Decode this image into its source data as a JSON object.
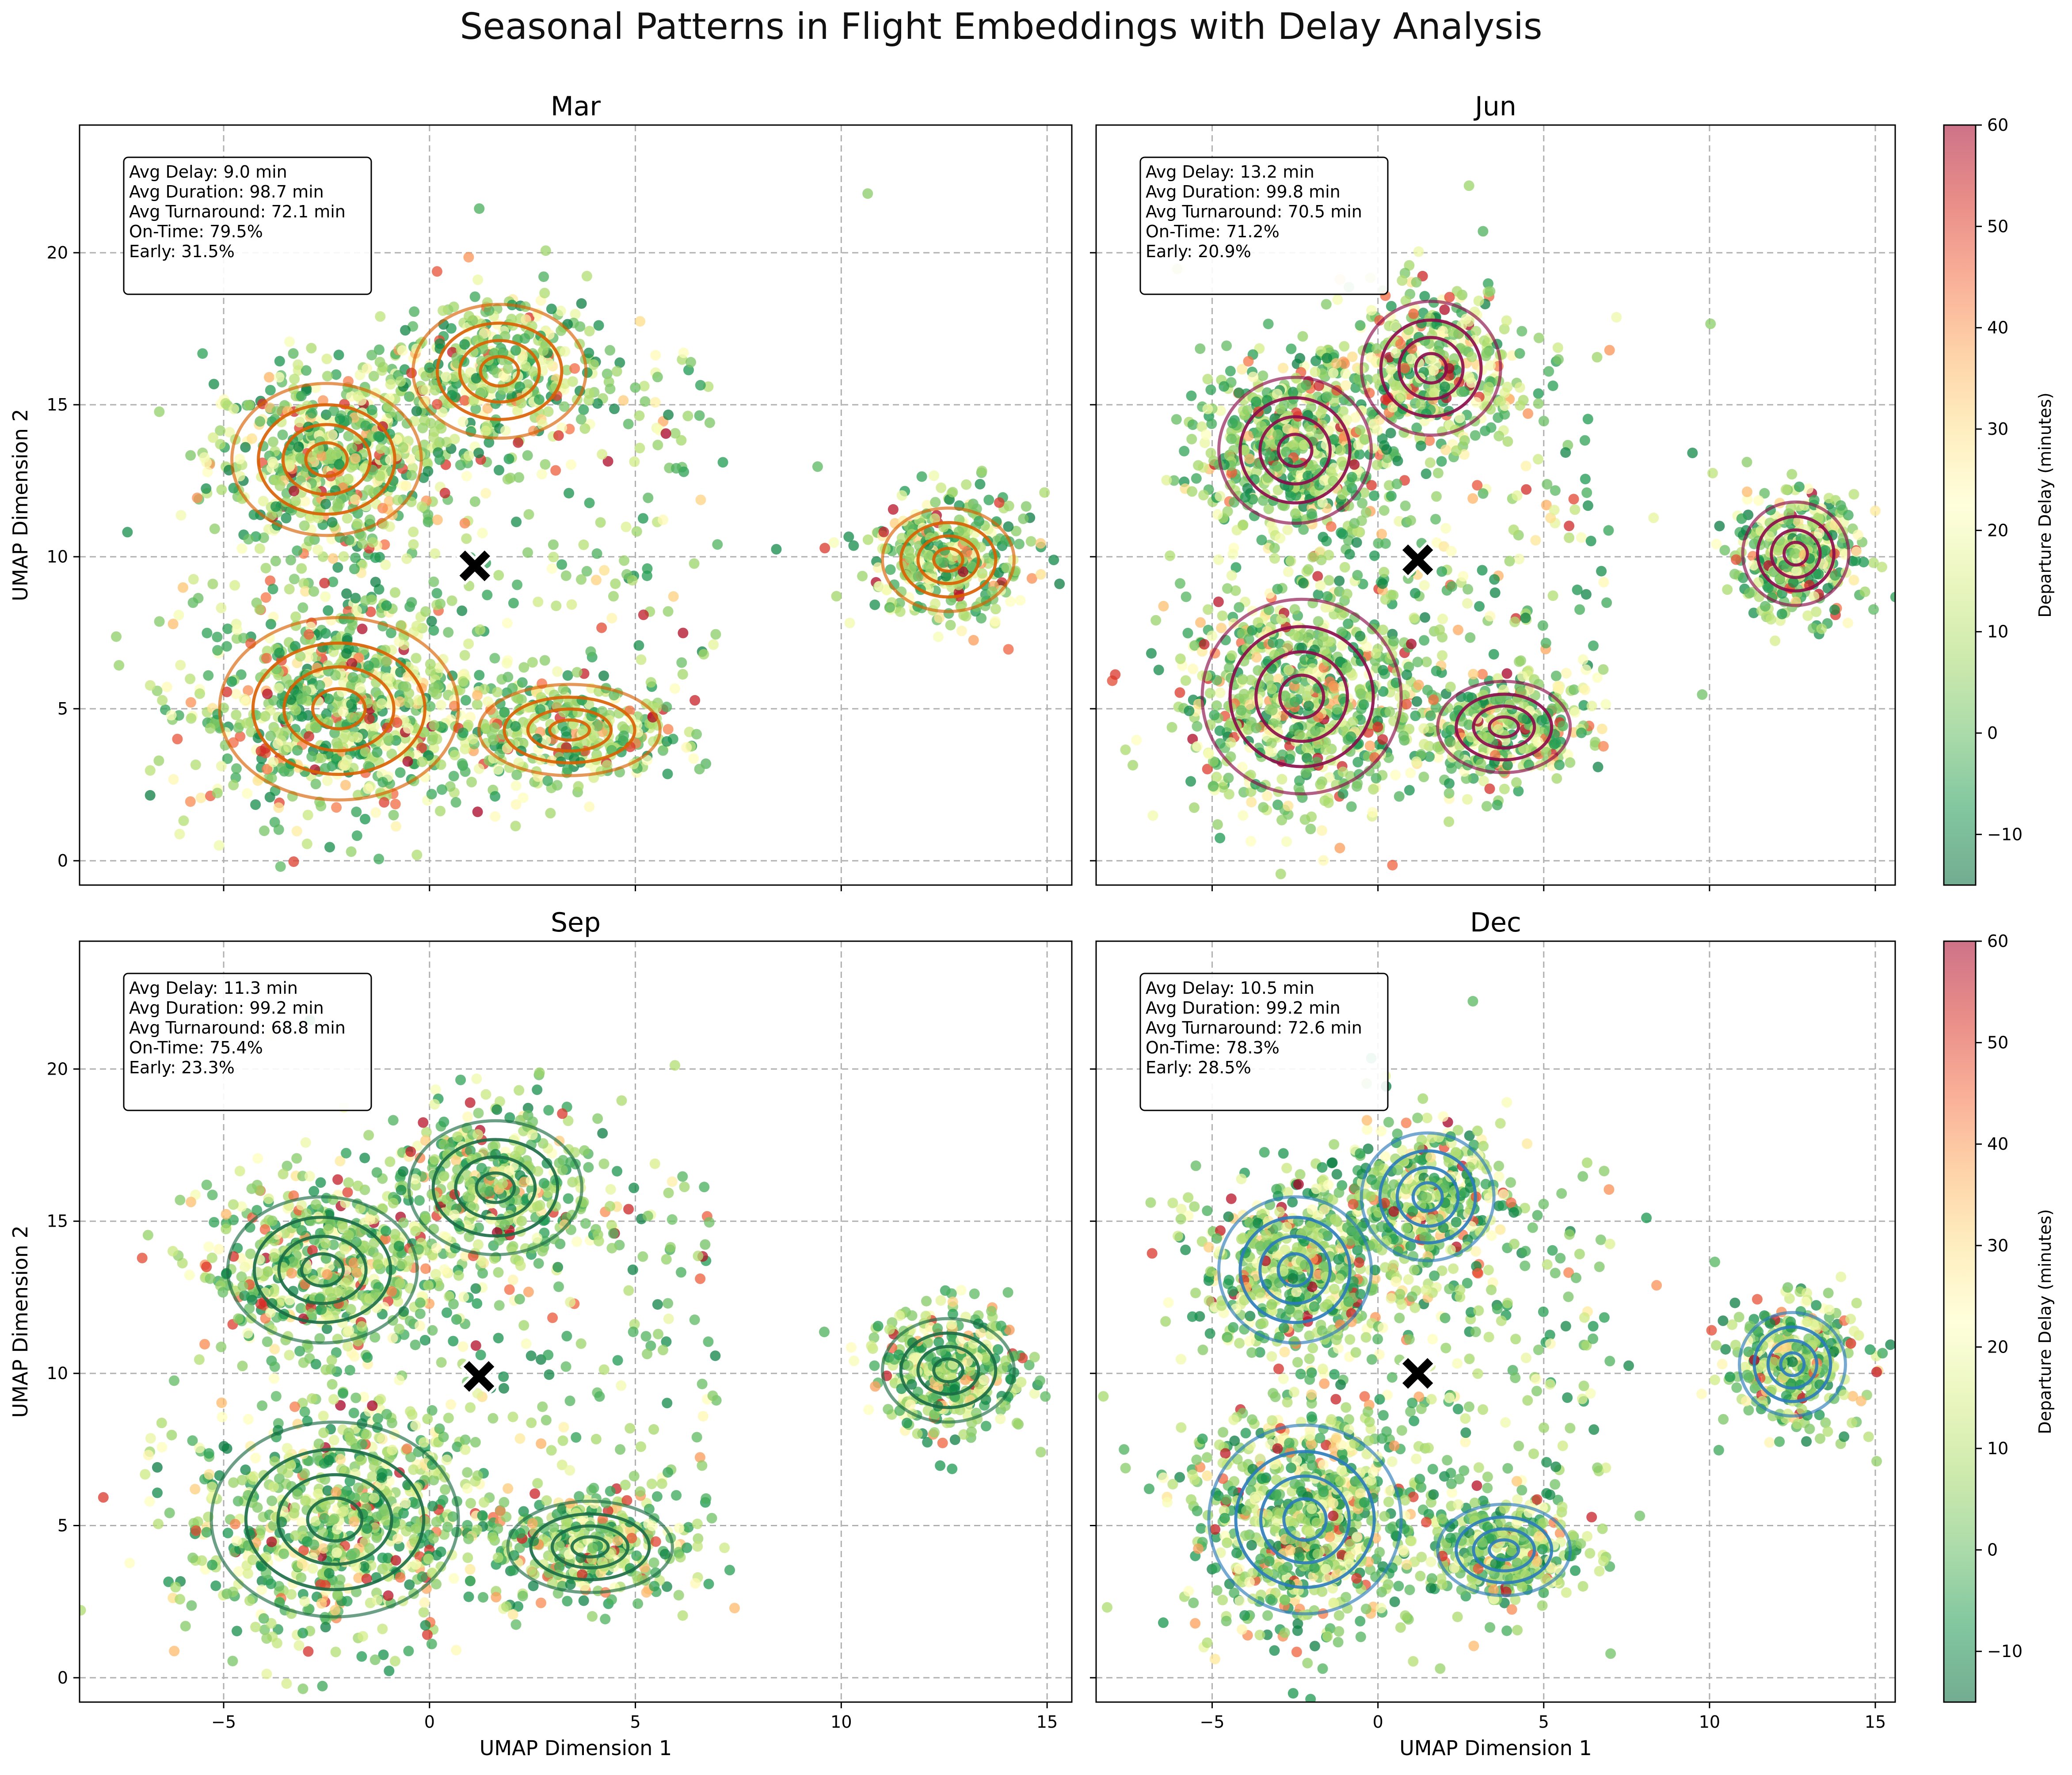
{
  "figure": {
    "title": "Seasonal Patterns in Flight Embeddings with Delay Analysis"
  },
  "colorbar": {
    "label": "Departure Delay (minutes)",
    "range": [
      -15,
      60
    ],
    "ticks": [
      -10,
      0,
      10,
      20,
      30,
      40,
      50,
      60
    ],
    "tick_labels": [
      "−10",
      "0",
      "10",
      "20",
      "30",
      "40",
      "50",
      "60"
    ],
    "colormap": "RdYlGn_r",
    "alpha": 0.55
  },
  "chart_data": [
    {
      "type": "scatter",
      "title": "Mar",
      "xlabel": "",
      "ylabel": "UMAP Dimension 2",
      "xlim": [
        -8.5,
        15.6
      ],
      "ylim": [
        -0.8,
        24.2
      ],
      "xticks": [
        -5,
        0,
        5,
        10,
        15
      ],
      "xtick_labels": [],
      "yticks": [
        0,
        5,
        10,
        15,
        20
      ],
      "ytick_labels": [
        "0",
        "5",
        "10",
        "15",
        "20"
      ],
      "grid": true,
      "contour_color": "#d95f02",
      "centroid": [
        1.1,
        9.7
      ],
      "stats": [
        "Avg Delay: 9.0 min",
        "Avg Duration: 98.7 min",
        "Avg Turnaround: 72.1 min",
        "On-Time: 79.5%",
        "Early: 31.5%"
      ],
      "clusters": [
        {
          "center": [
            -2.5,
            13.2
          ],
          "radii": [
            2.3,
            2.5
          ]
        },
        {
          "center": [
            1.7,
            16.1
          ],
          "radii": [
            2.1,
            2.2
          ]
        },
        {
          "center": [
            -2.2,
            5.0
          ],
          "radii": [
            2.9,
            3.0
          ]
        },
        {
          "center": [
            3.4,
            4.3
          ],
          "radii": [
            2.2,
            1.5
          ]
        },
        {
          "center": [
            12.6,
            9.9
          ],
          "radii": [
            1.6,
            1.7
          ]
        }
      ]
    },
    {
      "type": "scatter",
      "title": "Jun",
      "xlabel": "",
      "ylabel": "",
      "xlim": [
        -8.5,
        15.6
      ],
      "ylim": [
        -0.8,
        24.2
      ],
      "xticks": [
        -5,
        0,
        5,
        10,
        15
      ],
      "xtick_labels": [],
      "yticks": [
        0,
        5,
        10,
        15,
        20
      ],
      "ytick_labels": [],
      "grid": true,
      "contour_color": "#8b0a4a",
      "centroid": [
        1.2,
        9.9
      ],
      "stats": [
        "Avg Delay: 13.2 min",
        "Avg Duration: 99.8 min",
        "Avg Turnaround: 70.5 min",
        "On-Time: 71.2%",
        "Early: 20.9%"
      ],
      "clusters": [
        {
          "center": [
            -2.5,
            13.5
          ],
          "radii": [
            2.3,
            2.4
          ]
        },
        {
          "center": [
            1.6,
            16.2
          ],
          "radii": [
            2.1,
            2.2
          ]
        },
        {
          "center": [
            -2.3,
            5.4
          ],
          "radii": [
            3.0,
            3.2
          ]
        },
        {
          "center": [
            3.8,
            4.4
          ],
          "radii": [
            2.0,
            1.5
          ]
        },
        {
          "center": [
            12.6,
            10.1
          ],
          "radii": [
            1.6,
            1.7
          ]
        }
      ]
    },
    {
      "type": "scatter",
      "title": "Sep",
      "xlabel": "UMAP Dimension 1",
      "ylabel": "UMAP Dimension 2",
      "xlim": [
        -8.5,
        15.6
      ],
      "ylim": [
        -0.8,
        24.2
      ],
      "xticks": [
        -5,
        0,
        5,
        10,
        15
      ],
      "xtick_labels": [
        "−5",
        "0",
        "5",
        "10",
        "15"
      ],
      "yticks": [
        0,
        5,
        10,
        15,
        20
      ],
      "ytick_labels": [
        "0",
        "5",
        "10",
        "15",
        "20"
      ],
      "grid": true,
      "contour_color": "#1b6b45",
      "centroid": [
        1.2,
        9.9
      ],
      "stats": [
        "Avg Delay: 11.3 min",
        "Avg Duration: 99.2 min",
        "Avg Turnaround: 68.8 min",
        "On-Time: 75.4%",
        "Early: 23.3%"
      ],
      "clusters": [
        {
          "center": [
            -2.6,
            13.4
          ],
          "radii": [
            2.3,
            2.4
          ]
        },
        {
          "center": [
            1.6,
            16.1
          ],
          "radii": [
            2.1,
            2.2
          ]
        },
        {
          "center": [
            -2.3,
            5.2
          ],
          "radii": [
            3.0,
            3.2
          ]
        },
        {
          "center": [
            3.9,
            4.3
          ],
          "radii": [
            2.0,
            1.5
          ]
        },
        {
          "center": [
            12.6,
            10.1
          ],
          "radii": [
            1.6,
            1.7
          ]
        }
      ]
    },
    {
      "type": "scatter",
      "title": "Dec",
      "xlabel": "UMAP Dimension 1",
      "ylabel": "",
      "xlim": [
        -8.5,
        15.6
      ],
      "ylim": [
        -0.8,
        24.2
      ],
      "xticks": [
        -5,
        0,
        5,
        10,
        15
      ],
      "xtick_labels": [
        "−5",
        "0",
        "5",
        "10",
        "15"
      ],
      "yticks": [
        0,
        5,
        10,
        15,
        20
      ],
      "ytick_labels": [],
      "grid": true,
      "contour_color": "#2b7bba",
      "centroid": [
        1.2,
        10.0
      ],
      "stats": [
        "Avg Delay: 10.5 min",
        "Avg Duration: 99.2 min",
        "Avg Turnaround: 72.6 min",
        "On-Time: 78.3%",
        "Early: 28.5%"
      ],
      "clusters": [
        {
          "center": [
            -2.5,
            13.4
          ],
          "radii": [
            2.3,
            2.4
          ]
        },
        {
          "center": [
            1.5,
            15.8
          ],
          "radii": [
            2.0,
            2.1
          ]
        },
        {
          "center": [
            -2.2,
            5.2
          ],
          "radii": [
            2.9,
            3.1
          ]
        },
        {
          "center": [
            3.8,
            4.2
          ],
          "radii": [
            2.0,
            1.5
          ]
        },
        {
          "center": [
            12.5,
            10.3
          ],
          "radii": [
            1.6,
            1.7
          ]
        }
      ]
    }
  ]
}
